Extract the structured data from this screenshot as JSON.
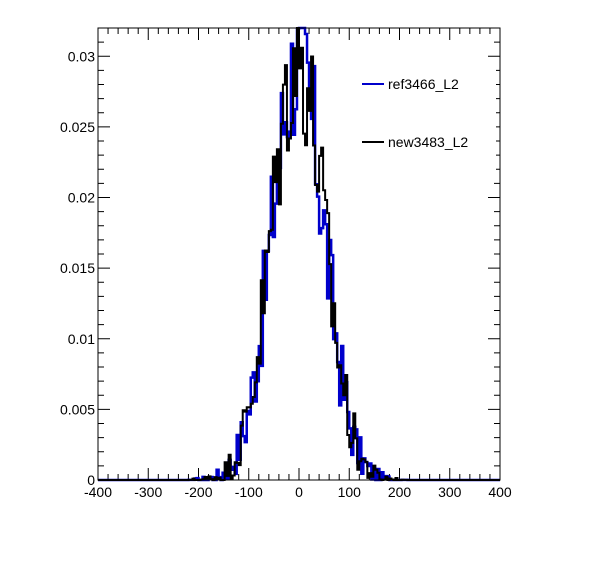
{
  "chart_data": {
    "type": "histogram",
    "title": "",
    "xlabel": "",
    "ylabel": "",
    "xlim": [
      -400,
      400
    ],
    "ylim": [
      0,
      0.032
    ],
    "x_ticks": [
      -400,
      -300,
      -200,
      -100,
      0,
      100,
      200,
      300,
      400
    ],
    "y_ticks": [
      0,
      0.005,
      0.01,
      0.015,
      0.02,
      0.025,
      0.03
    ],
    "x_tick_labels": [
      "-400",
      "-300",
      "-200",
      "-100",
      "0",
      "100",
      "200",
      "300",
      "400"
    ],
    "y_tick_labels": [
      "0",
      "0.005",
      "0.01",
      "0.015",
      "0.02",
      "0.025",
      "0.03"
    ],
    "grid": false,
    "legend_position": "top-right",
    "bin_width": 4,
    "series": [
      {
        "name": "ref3466_L2",
        "color": "#0000cc",
        "curve": {
          "shape": "gaussian",
          "peak": 0.0295,
          "mean": -2,
          "sigma": 52
        }
      },
      {
        "name": "new3483_L2",
        "color": "#000000",
        "curve": {
          "shape": "gaussian",
          "peak": 0.03,
          "mean": -2,
          "sigma": 52
        }
      }
    ]
  }
}
